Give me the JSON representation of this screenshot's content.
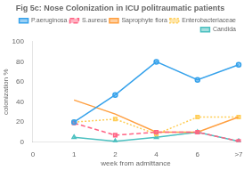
{
  "chart_data": {
    "type": "line",
    "title": "Fig 5c: Nose Colonization in ICU politraumatic patients",
    "x_label": "week from admittance",
    "y_label": "colonization %",
    "categories": [
      "0",
      "1",
      "2",
      "4",
      "6",
      ">7"
    ],
    "series": [
      {
        "name": "P.aeruginosa",
        "values": [
          null,
          20,
          47,
          80,
          62,
          77
        ],
        "marker": "circle",
        "line_style": "solid"
      },
      {
        "name": "S.aureus",
        "values": [
          null,
          19,
          7,
          10,
          10,
          1
        ],
        "marker": "square",
        "line_style": "dashed"
      },
      {
        "name": "Saprophyte flora",
        "values": [
          null,
          42,
          28,
          10,
          10,
          25
        ],
        "marker": "none",
        "line_style": "solid"
      },
      {
        "name": "Enterobacteriaceae",
        "values": [
          null,
          20,
          23,
          8,
          25,
          25
        ],
        "marker": "square",
        "line_style": "dotted"
      },
      {
        "name": "Candida",
        "values": [
          null,
          5,
          1,
          5,
          10,
          1
        ],
        "marker": "triangle",
        "line_style": "solid"
      }
    ],
    "ylim": [
      0,
      100
    ],
    "yticks": [
      0,
      20,
      40,
      60,
      80,
      100
    ],
    "grid": false,
    "legend": "upper right"
  }
}
